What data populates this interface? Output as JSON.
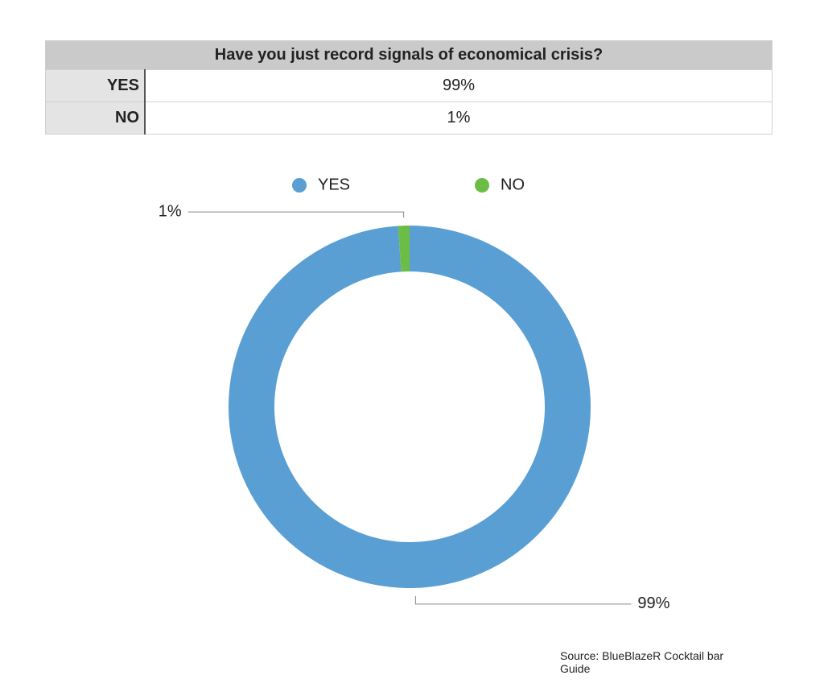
{
  "table": {
    "title": "Have you just record signals of economical crisis?",
    "rows": [
      [
        "YES",
        "99%"
      ],
      [
        "NO",
        "1%"
      ]
    ]
  },
  "chart_data": {
    "type": "donut",
    "categories": [
      "YES",
      "NO"
    ],
    "values": [
      99,
      1
    ],
    "value_labels": [
      "99%",
      "1%"
    ],
    "colors": [
      "#5a9fd4",
      "#6cbd45"
    ],
    "legend": "top",
    "source": "Source: BlueBlazeR Cocktail bar Guide"
  }
}
